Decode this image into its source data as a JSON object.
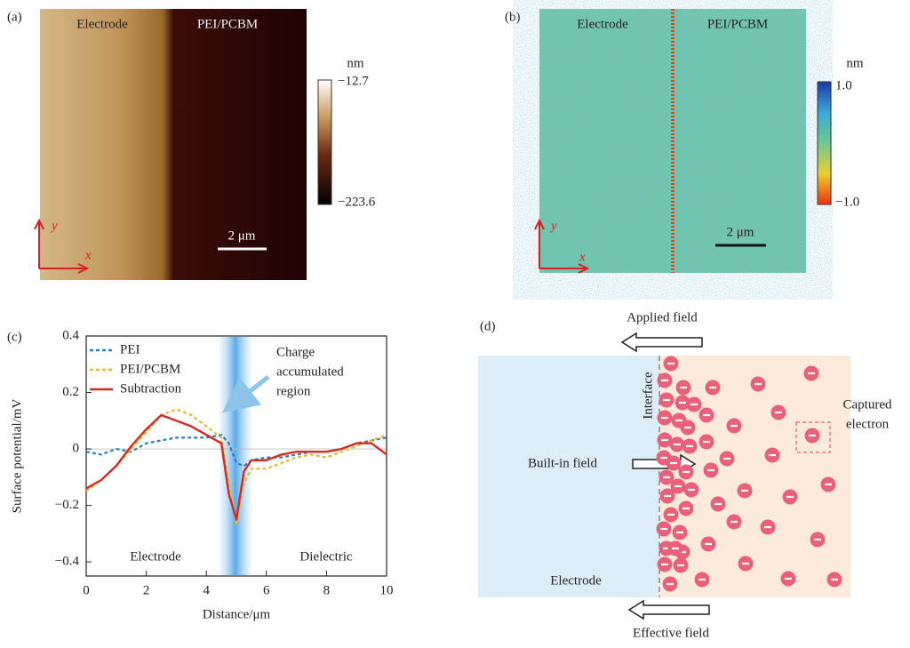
{
  "panel_a": {
    "label": "(a)",
    "left_text": "Electrode",
    "right_text": "PEI/PCBM",
    "colorbar_unit": "nm",
    "colorbar_top": "−12.7",
    "colorbar_bottom": "−223.6",
    "scale_bar": "2 μm",
    "axis_y": "y",
    "axis_x": "x"
  },
  "panel_b": {
    "label": "(b)",
    "left_text": "Electrode",
    "right_text": "PEI/PCBM",
    "colorbar_unit": "nm",
    "colorbar_top": "1.0",
    "colorbar_bottom": "−1.0",
    "scale_bar": "2 μm",
    "axis_y": "y",
    "axis_x": "x"
  },
  "chart_data": {
    "type": "line",
    "panel_label": "(c)",
    "x_label": "Distance/μm",
    "y_label": "Surface potential/mV",
    "annotation_lines": [
      "Charge",
      "accumulated",
      "region"
    ],
    "region_left": "Electrode",
    "region_right": "Dielectric",
    "x": [
      0,
      0.5,
      1,
      1.5,
      2,
      2.5,
      3,
      3.5,
      4,
      4.5,
      4.75,
      5,
      5.25,
      5.5,
      6,
      6.5,
      7,
      7.5,
      8,
      8.5,
      9,
      9.5,
      10
    ],
    "series": [
      {
        "name": "PEI",
        "color": "#2f7fb0",
        "dash": true,
        "values": [
          -0.01,
          -0.02,
          0.0,
          -0.01,
          0.02,
          0.03,
          0.04,
          0.04,
          0.04,
          0.05,
          0.02,
          -0.05,
          -0.06,
          -0.04,
          -0.03,
          -0.03,
          -0.02,
          -0.01,
          -0.01,
          0.0,
          0.02,
          0.03,
          0.04
        ]
      },
      {
        "name": "PEI/PCBM",
        "color": "#e8b832",
        "dash": true,
        "values": [
          -0.15,
          -0.11,
          -0.06,
          0.0,
          0.06,
          0.12,
          0.14,
          0.12,
          0.08,
          0.04,
          -0.12,
          -0.27,
          -0.12,
          -0.07,
          -0.07,
          -0.05,
          -0.03,
          -0.02,
          -0.03,
          -0.01,
          0.01,
          0.03,
          0.05
        ]
      },
      {
        "name": "Subtraction",
        "color": "#d42a22",
        "dash": false,
        "values": [
          -0.14,
          -0.11,
          -0.06,
          0.01,
          0.07,
          0.12,
          0.1,
          0.08,
          0.05,
          0.02,
          -0.16,
          -0.25,
          -0.08,
          -0.04,
          -0.04,
          -0.02,
          -0.01,
          -0.01,
          -0.01,
          0.0,
          0.02,
          0.02,
          -0.02
        ]
      }
    ],
    "xlim": [
      0,
      10
    ],
    "ylim": [
      -0.45,
      0.4
    ],
    "xticks": [
      0,
      2,
      4,
      6,
      8,
      10
    ],
    "yticks": [
      {
        "value": -0.4,
        "label": "−0.4"
      },
      {
        "value": -0.2,
        "label": "−0.2"
      },
      0,
      0.2,
      0.4
    ],
    "legend": "upper-left"
  },
  "panel_d": {
    "label": "(d)",
    "applied_field": "Applied field",
    "interface": "Interface",
    "built_in_field": "Built-in field",
    "captured_lines": [
      "Captured",
      "electron"
    ],
    "electrode": "Electrode",
    "effective_field": "Effective field"
  }
}
